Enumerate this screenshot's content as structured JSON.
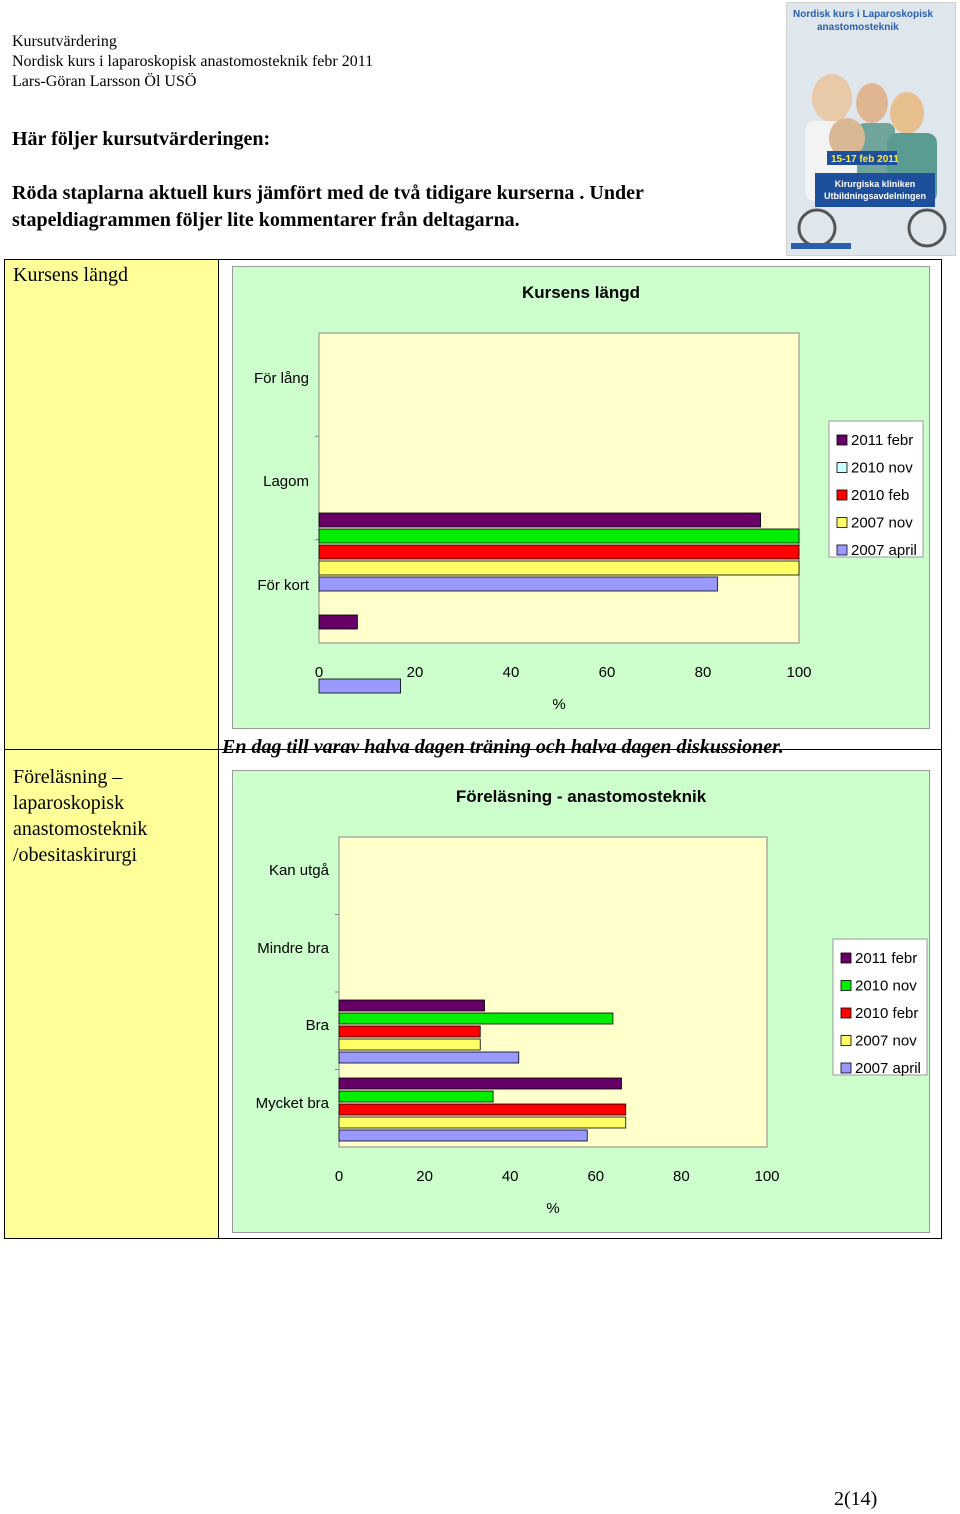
{
  "header": {
    "line1": "Kursutvärdering",
    "line2": "Nordisk kurs i laparoskopisk anastomosteknik febr 2011",
    "line3": "Lars-Göran Larsson Öl USÖ"
  },
  "intro": {
    "heading": "Här följer kursutvärderingen:",
    "text": "Röda staplarna aktuell kurs jämfört med de två tidigare kurserna . Under stapeldiagrammen följer lite kommentarer från deltagarna."
  },
  "poster": {
    "title": "Nordisk kurs i Laparoskopisk anastomosteknik",
    "date": "15-17 feb 2011",
    "org": "Kirurgiska kliniken Utbildningsavdelningen"
  },
  "rows": [
    {
      "label": "Kursens längd"
    },
    {
      "label": "Föreläsning – laparoskopisk anastomosteknik /obesitaskirurgi"
    }
  ],
  "comment": "En dag till varav halva dagen träning och halva dagen diskussioner.",
  "colors": {
    "s2011": "#660066",
    "s2010nov_white": "#ccffff",
    "s2010nov_green": "#00ee00",
    "s2010feb": "#ff0000",
    "s2007nov": "#ffff66",
    "s2007april": "#9999ff",
    "plot_bg": "#ffffcc",
    "chart_bg": "#ccffcc"
  },
  "chart_data": [
    {
      "type": "bar",
      "orientation": "horizontal",
      "title": "Kursens längd",
      "xlabel": "%",
      "ylabel": "",
      "xlim": [
        0,
        100
      ],
      "xticks": [
        "0",
        "20",
        "40",
        "60",
        "80",
        "100"
      ],
      "categories": [
        "För lång",
        "Lagom",
        "För kort"
      ],
      "legend": [
        "2011 febr",
        "2010 nov",
        "2010 feb",
        "2007 nov",
        "2007 april"
      ],
      "legend_position": "right",
      "series": [
        {
          "name": "2011 febr",
          "values": [
            0,
            92,
            8
          ]
        },
        {
          "name": "2010 nov",
          "values": [
            0,
            100,
            0
          ]
        },
        {
          "name": "2010 feb",
          "values": [
            0,
            100,
            0
          ]
        },
        {
          "name": "2007 nov",
          "values": [
            0,
            100,
            0
          ]
        },
        {
          "name": "2007 april",
          "values": [
            0,
            83,
            17
          ]
        }
      ]
    },
    {
      "type": "bar",
      "orientation": "horizontal",
      "title": "Föreläsning - anastomosteknik",
      "xlabel": "%",
      "ylabel": "",
      "xlim": [
        0,
        100
      ],
      "xticks": [
        "0",
        "20",
        "40",
        "60",
        "80",
        "100"
      ],
      "categories": [
        "Kan utgå",
        "Mindre bra",
        "Bra",
        "Mycket bra"
      ],
      "legend": [
        "2011 febr",
        "2010 nov",
        "2010 febr",
        "2007 nov",
        "2007 april"
      ],
      "legend_position": "right",
      "series": [
        {
          "name": "2011 febr",
          "values": [
            0,
            0,
            34,
            66
          ]
        },
        {
          "name": "2010 nov",
          "values": [
            0,
            0,
            64,
            36
          ]
        },
        {
          "name": "2010 febr",
          "values": [
            0,
            0,
            33,
            67
          ]
        },
        {
          "name": "2007 nov",
          "values": [
            0,
            0,
            33,
            67
          ]
        },
        {
          "name": "2007 april",
          "values": [
            0,
            0,
            42,
            58
          ]
        }
      ]
    }
  ],
  "page": "2(14)"
}
